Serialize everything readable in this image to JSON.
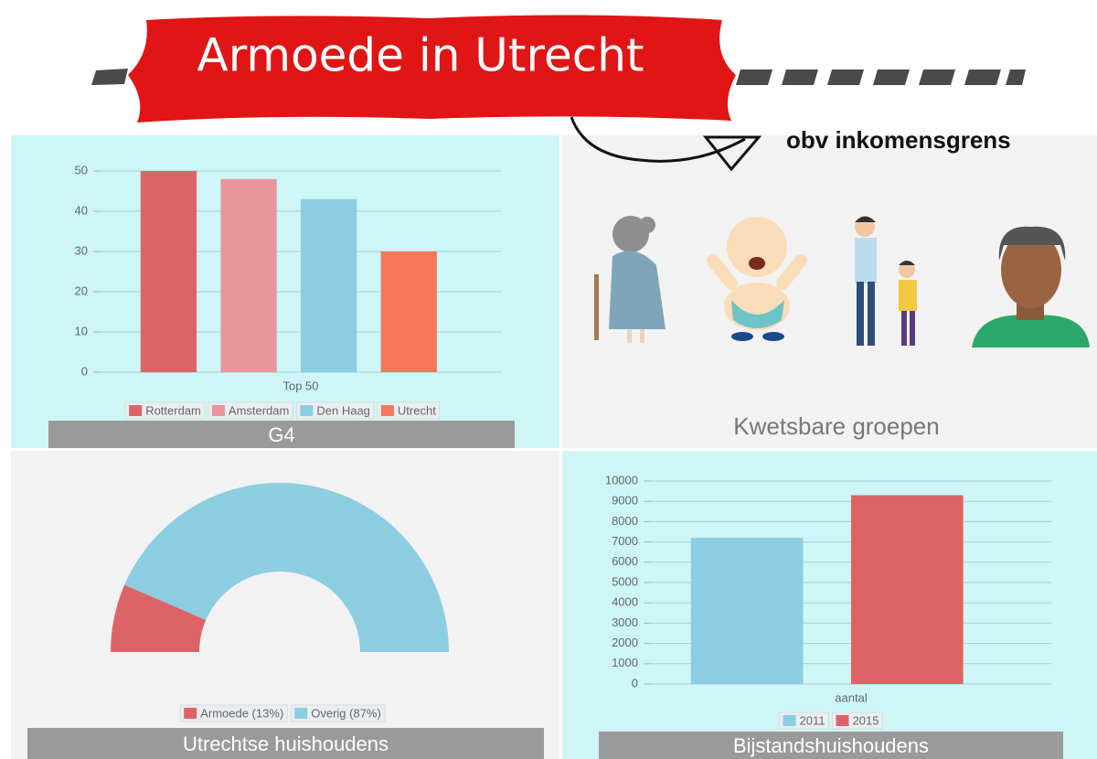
{
  "header": {
    "title": "Armoede in Utrecht",
    "note": "obv inkomensgrens"
  },
  "panels": {
    "groups_caption": "Kwetsbare groepen"
  },
  "chart_data": [
    {
      "type": "bar",
      "caption": "G4",
      "categories": [
        "Top 50"
      ],
      "series": [
        {
          "name": "Rotterdam",
          "color": "#dd6466",
          "values": [
            50
          ]
        },
        {
          "name": "Amsterdam",
          "color": "#e9959a",
          "values": [
            48
          ]
        },
        {
          "name": "Den Haag",
          "color": "#8ccde2",
          "values": [
            43
          ]
        },
        {
          "name": "Utrecht",
          "color": "#f5775c",
          "values": [
            30
          ]
        }
      ],
      "ylim": [
        0,
        50
      ],
      "yticks": [
        0,
        10,
        20,
        30,
        40,
        50
      ],
      "grid": true
    },
    {
      "type": "half-donut",
      "caption": "Utrechtse huishoudens",
      "categories": [
        "Armoede (13%)",
        "Overig (87%)"
      ],
      "values": [
        13,
        87
      ],
      "colors": [
        "#dd6466",
        "#8ccde2"
      ]
    },
    {
      "type": "bar",
      "caption": "Bijstandshuishoudens",
      "categories": [
        "aantal"
      ],
      "series": [
        {
          "name": "2011",
          "color": "#8ccde2",
          "values": [
            7200
          ]
        },
        {
          "name": "2015",
          "color": "#dd6466",
          "values": [
            9300
          ]
        }
      ],
      "ylim": [
        0,
        10000
      ],
      "yticks": [
        0,
        1000,
        2000,
        3000,
        4000,
        5000,
        6000,
        7000,
        8000,
        9000,
        10000
      ],
      "grid": true
    }
  ]
}
